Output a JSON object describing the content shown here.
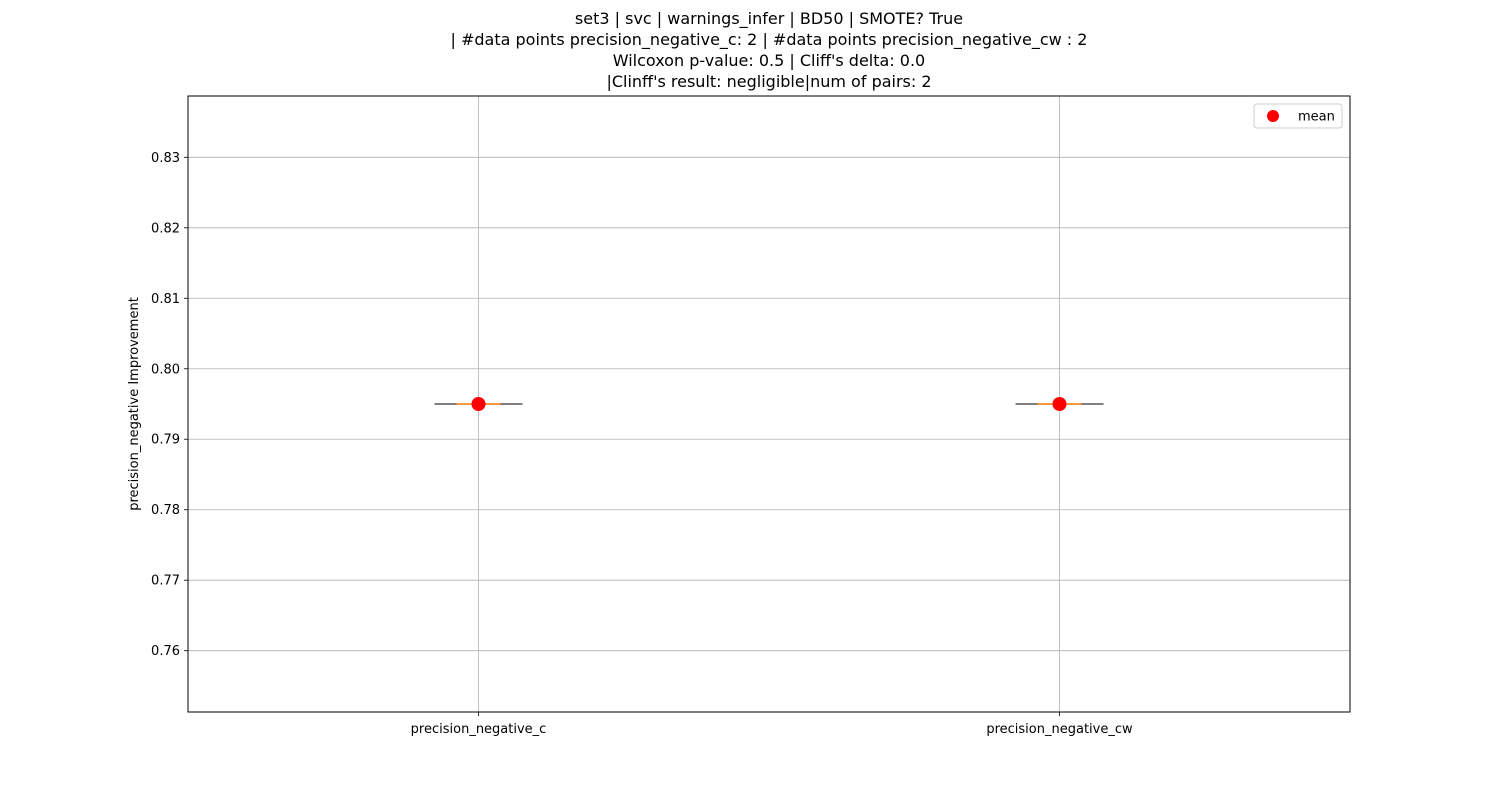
{
  "chart_data": {
    "type": "box",
    "title_lines": [
      "set3 | svc | warnings_infer | BD50 | SMOTE? True",
      "| #data points precision_negative_c: 2 | #data points precision_negative_cw : 2",
      "Wilcoxon p-value: 0.5 | Cliff's delta: 0.0",
      "|Clinff's result: negligible|num of pairs: 2"
    ],
    "ylabel": "precision_negative Improvement",
    "ylim": [
      0.7513,
      0.8387
    ],
    "y_ticks": [
      0.76,
      0.77,
      0.78,
      0.79,
      0.8,
      0.81,
      0.82,
      0.83
    ],
    "y_tick_labels": [
      "0.76",
      "0.77",
      "0.78",
      "0.79",
      "0.80",
      "0.81",
      "0.82",
      "0.83"
    ],
    "categories": [
      "precision_negative_c",
      "precision_negative_cw"
    ],
    "boxes": [
      {
        "name": "precision_negative_c",
        "min": 0.795,
        "q1": 0.795,
        "median": 0.795,
        "q3": 0.795,
        "max": 0.795,
        "mean": 0.795
      },
      {
        "name": "precision_negative_cw",
        "min": 0.795,
        "q1": 0.795,
        "median": 0.795,
        "q3": 0.795,
        "max": 0.795,
        "mean": 0.795
      }
    ],
    "legend": {
      "position": "top-right",
      "entries": [
        {
          "label": "mean",
          "marker": "circle",
          "color": "#ff0000"
        }
      ]
    },
    "grid": true,
    "colors": {
      "median": "#ff7f0e",
      "mean": "#ff0000",
      "box": "#000000",
      "grid": "#b0b0b0"
    }
  }
}
